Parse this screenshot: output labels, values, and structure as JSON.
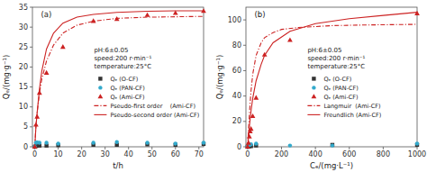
{
  "chart_data": [
    {
      "type": "scatter",
      "title": "(a)",
      "x_label": "t/h",
      "y_label": "Qₑ/(mg·g⁻¹)",
      "xlim": [
        -1,
        72
      ],
      "ylim": [
        0,
        35
      ],
      "xticks": [
        0,
        10,
        20,
        30,
        40,
        50,
        60,
        70
      ],
      "yticks": [
        0,
        5,
        10,
        15,
        20,
        25,
        30,
        35
      ],
      "grid": false,
      "annotation": "pH:6±0.05\nspeed:200 r·min⁻¹\ntemperature:25°C",
      "series": [
        {
          "name": "Qₑ (O-CF)",
          "type": "scatter",
          "marker": "square",
          "color": "#333333",
          "x": [
            0,
            0.5,
            1,
            2,
            5,
            10,
            25,
            35,
            48,
            60,
            72
          ],
          "values": [
            0,
            0.2,
            0.3,
            0.3,
            0.3,
            0.4,
            0.5,
            0.5,
            0.6,
            0.5,
            0.7
          ]
        },
        {
          "name": "Qₑ (PAN-CF)",
          "type": "scatter",
          "marker": "circle",
          "color": "#33aacc",
          "x": [
            0,
            0.5,
            1,
            2,
            5,
            10,
            25,
            35,
            48,
            60,
            72
          ],
          "values": [
            0,
            1.0,
            1.1,
            1.0,
            1.0,
            0.8,
            1.0,
            1.2,
            1.0,
            0.8,
            1.0
          ]
        },
        {
          "name": "Qₑ (Ami-CF)",
          "type": "scatter",
          "marker": "triangle",
          "color": "#cc2222",
          "x": [
            0,
            0.5,
            1,
            2,
            5,
            12,
            25,
            35,
            48,
            60,
            72
          ],
          "values": [
            0,
            5.5,
            7.5,
            13.5,
            18.5,
            25.0,
            31.5,
            32.0,
            33.0,
            33.5,
            34.0
          ]
        },
        {
          "name": "Pseudo-first order    (Ami-CF)",
          "type": "line",
          "line_style": "dashdot",
          "color": "#cc2222",
          "x": [
            0,
            0.5,
            1,
            2,
            3,
            5,
            8,
            12,
            18,
            25,
            35,
            48,
            60,
            72
          ],
          "values": [
            0,
            5.5,
            8.5,
            13.5,
            17.0,
            21.5,
            25.5,
            28.5,
            30.5,
            31.5,
            32.2,
            32.5,
            32.6,
            32.7
          ]
        },
        {
          "name": "Pseudo-second order (Ami-CF)",
          "type": "line",
          "line_style": "solid",
          "color": "#cc2222",
          "x": [
            0,
            0.3,
            0.5,
            1,
            2,
            3,
            5,
            8,
            12,
            18,
            25,
            35,
            48,
            60,
            72
          ],
          "values": [
            0,
            3.0,
            5.0,
            8.5,
            14.5,
            19.0,
            24.5,
            28.5,
            31.0,
            32.5,
            33.2,
            33.7,
            34.0,
            34.1,
            34.1
          ]
        }
      ]
    },
    {
      "type": "scatter",
      "title": "(b)",
      "x_label": "Cₑ/(mg·L⁻¹)",
      "y_label": "Qₑ/(mg·g⁻¹)",
      "xlim": [
        -10,
        1000
      ],
      "ylim": [
        0,
        110
      ],
      "xticks": [
        0,
        200,
        400,
        600,
        800,
        1000
      ],
      "yticks": [
        0,
        20,
        40,
        60,
        80,
        100
      ],
      "grid": false,
      "annotation": "pH:6±0.05\nspeed:200 r·min⁻¹\ntemperature:25°C",
      "series": [
        {
          "name": "Qₑ (O-CF)",
          "type": "scatter",
          "marker": "square",
          "color": "#333333",
          "x": [
            0,
            5,
            10,
            20,
            50,
            500,
            1000
          ],
          "values": [
            0,
            0.3,
            0.5,
            0.5,
            1.0,
            1.5,
            1.5
          ]
        },
        {
          "name": "Qₑ (PAN-CF)",
          "type": "scatter",
          "marker": "circle",
          "color": "#33aacc",
          "x": [
            0,
            5,
            10,
            20,
            50,
            250,
            500,
            1000
          ],
          "values": [
            0,
            1.0,
            1.5,
            2.0,
            2.5,
            1.0,
            1.0,
            2.5
          ]
        },
        {
          "name": "Qₑ (Ami-CF)",
          "type": "scatter",
          "marker": "triangle",
          "color": "#cc2222",
          "x": [
            0,
            5,
            10,
            15,
            20,
            30,
            50,
            100,
            250,
            1000
          ],
          "values": [
            0,
            3.0,
            8.0,
            12.0,
            14.0,
            24.0,
            38.5,
            72.5,
            84.0,
            105.0
          ]
        },
        {
          "name": "Langmuir  (Ami-CF)",
          "type": "line",
          "line_style": "dashdot",
          "color": "#cc2222",
          "x": [
            0,
            3,
            5,
            8,
            10,
            15,
            20,
            30,
            50,
            80,
            100,
            150,
            200,
            300,
            500,
            700,
            1000
          ],
          "values": [
            0,
            8.0,
            13.0,
            20.0,
            25.0,
            35.0,
            44.0,
            57.0,
            72.0,
            82.0,
            86.0,
            90.0,
            92.5,
            94.0,
            95.5,
            96.0,
            96.5
          ]
        },
        {
          "name": "Freundlich (Ami-CF)",
          "type": "line",
          "line_style": "solid",
          "color": "#cc2222",
          "x": [
            0,
            3,
            5,
            8,
            10,
            15,
            20,
            30,
            50,
            80,
            100,
            150,
            250,
            400,
            600,
            800,
            1000
          ],
          "values": [
            0,
            4.0,
            7.0,
            12.0,
            15.5,
            22.0,
            28.0,
            38.0,
            52.0,
            65.0,
            72.0,
            82.0,
            91.0,
            97.0,
            101.0,
            103.5,
            106.0
          ]
        }
      ]
    }
  ]
}
